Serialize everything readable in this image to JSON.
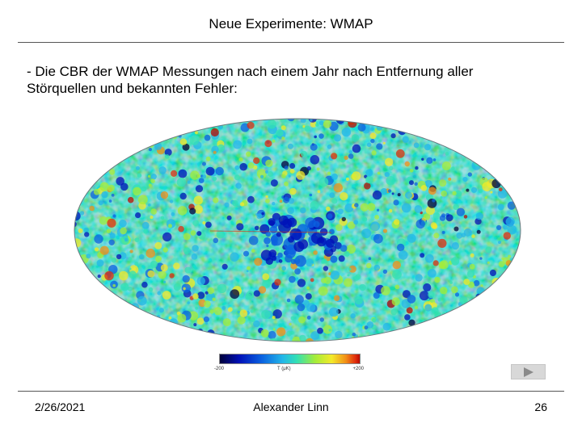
{
  "slide": {
    "title": "Neue Experimente: WMAP",
    "body_line1": "- Die CBR der WMAP Messungen nach einem Jahr nach Entfernung aller",
    "body_line2": "Störquellen und bekannten Fehler:"
  },
  "figure": {
    "colorbar": {
      "min_label": "-200",
      "unit_label": "T (μK)",
      "max_label": "+200"
    },
    "palette": [
      "#00003a",
      "#0011b8",
      "#0b62e0",
      "#23b7e8",
      "#33e0b4",
      "#a4ec3a",
      "#f3ea2a",
      "#f29017",
      "#e02d0d",
      "#b80b00"
    ]
  },
  "navigation": {
    "next_icon": "play-triangle-icon"
  },
  "footer": {
    "date": "2/26/2021",
    "author": "Alexander Linn",
    "page_number": "26"
  }
}
